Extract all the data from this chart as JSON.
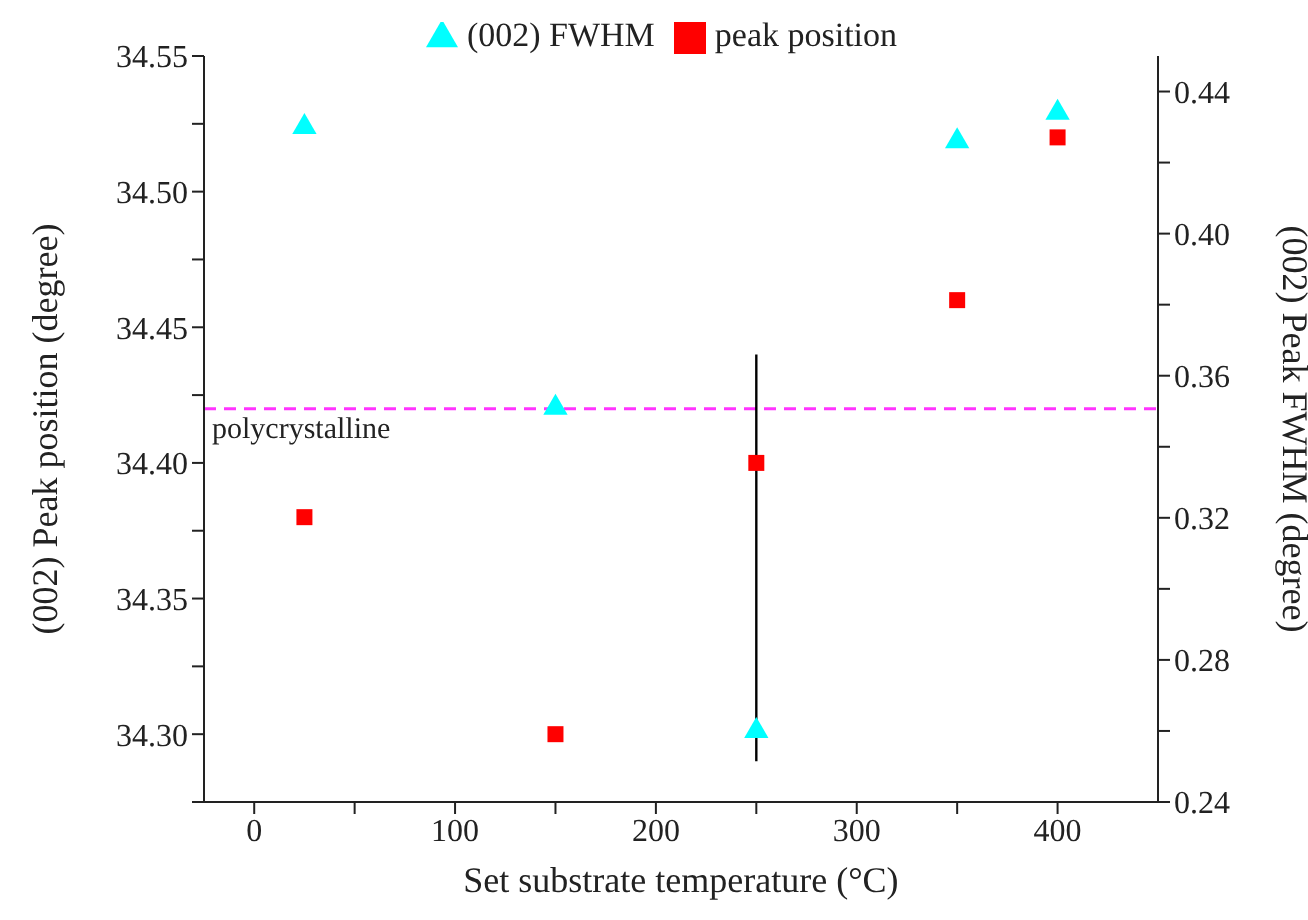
{
  "chart_data": {
    "type": "scatter",
    "xlabel": "Set substrate temperature (°C)",
    "ylabel": "(002) Peak position (degree)",
    "y2label": "(002) Peak FWHM (degree)",
    "x": [
      25,
      150,
      250,
      350,
      400
    ],
    "series": [
      {
        "name": "(002) FWHM",
        "color": "#00ffff",
        "marker": "triangle",
        "axis": "y2",
        "values": [
          0.43,
          0.351,
          0.26,
          0.426,
          0.434
        ]
      },
      {
        "name": "peak position",
        "color": "#ff0000",
        "marker": "square",
        "values": [
          34.38,
          34.3,
          34.4,
          34.46,
          34.52
        ],
        "errors": [
          null,
          null,
          [
            34.29,
            34.44
          ],
          null,
          null
        ]
      }
    ],
    "xlim": [
      -25,
      450
    ],
    "xticks": [
      0,
      {
        "value": 50,
        "label": null
      },
      100,
      {
        "value": 150,
        "label": null
      },
      200,
      {
        "value": 250,
        "label": null
      },
      300,
      {
        "value": 350,
        "label": null
      },
      400
    ],
    "ylim": [
      34.275,
      34.55
    ],
    "yticks": [
      {
        "value": 34.275,
        "label": null
      },
      {
        "value": 34.3,
        "label": "34.30"
      },
      {
        "value": 34.325,
        "label": null
      },
      34.35,
      {
        "value": 34.375,
        "label": null
      },
      {
        "value": 34.4,
        "label": "34.40"
      },
      {
        "value": 34.425,
        "label": null
      },
      34.45,
      {
        "value": 34.475,
        "label": null
      },
      {
        "value": 34.5,
        "label": "34.50"
      },
      {
        "value": 34.525,
        "label": null
      },
      34.55
    ],
    "y2lim": [
      0.24,
      0.45
    ],
    "y2ticks": [
      0.24,
      {
        "value": 0.26,
        "label": null
      },
      0.28,
      {
        "value": 0.3,
        "label": null
      },
      0.32,
      {
        "value": 0.34,
        "label": null
      },
      0.36,
      {
        "value": 0.38,
        "label": null
      },
      {
        "value": 0.4,
        "label": "0.40"
      },
      {
        "value": 0.42,
        "label": null
      },
      0.44
    ],
    "ref_lines": [
      {
        "axis": "y",
        "value": 34.42,
        "label": "polycrystalline",
        "color": "#ff33ff",
        "line_style": "dashed"
      }
    ],
    "legend": "top",
    "grid": false
  }
}
